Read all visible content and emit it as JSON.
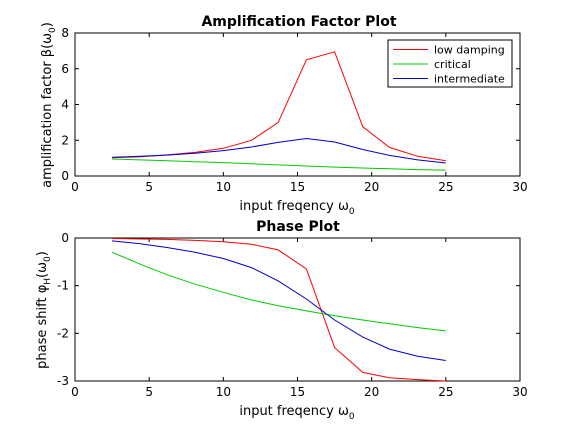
{
  "chart_data": [
    {
      "type": "line",
      "title": "Amplification Factor Plot",
      "xlabel": "input freqency ω",
      "xlabel_sub": "0",
      "ylabel": "amplification factor β(ω",
      "ylabel_sub": "0",
      "ylabel_end": ")",
      "xlim": [
        0,
        30
      ],
      "ylim": [
        0,
        8
      ],
      "xticks": [
        0,
        5,
        10,
        15,
        20,
        25,
        30
      ],
      "yticks": [
        0,
        2,
        4,
        6,
        8
      ],
      "grid": false,
      "legend_position": "top-right",
      "series": [
        {
          "name": "low damping",
          "color": "#ff0000",
          "x": [
            2.5,
            4.4,
            6.2,
            8.1,
            10.0,
            11.9,
            13.7,
            15.6,
            17.5,
            19.4,
            21.2,
            23.1,
            25.0
          ],
          "y": [
            1.02,
            1.08,
            1.18,
            1.32,
            1.55,
            2.0,
            3.0,
            6.5,
            6.95,
            2.75,
            1.6,
            1.1,
            0.85
          ]
        },
        {
          "name": "critical",
          "color": "#00cc00",
          "x": [
            2.5,
            4.4,
            6.2,
            8.1,
            10.0,
            11.9,
            13.7,
            15.6,
            17.5,
            19.4,
            21.2,
            23.1,
            25.0
          ],
          "y": [
            0.95,
            0.9,
            0.85,
            0.8,
            0.75,
            0.68,
            0.62,
            0.56,
            0.5,
            0.45,
            0.4,
            0.36,
            0.33
          ]
        },
        {
          "name": "intermediate",
          "color": "#0000cc",
          "x": [
            2.5,
            4.4,
            6.2,
            8.1,
            10.0,
            11.9,
            13.7,
            15.6,
            17.5,
            19.4,
            21.2,
            23.1,
            25.0
          ],
          "y": [
            1.05,
            1.1,
            1.17,
            1.27,
            1.42,
            1.62,
            1.88,
            2.1,
            1.9,
            1.48,
            1.15,
            0.9,
            0.73
          ]
        }
      ]
    },
    {
      "type": "line",
      "title": "Phase Plot",
      "xlabel": "input freqency ω",
      "xlabel_sub": "0",
      "ylabel": "phase shift φ",
      "ylabel_sub": "H",
      "ylabel_end": "(ω",
      "ylabel_sub2": "0",
      "ylabel_end2": ")",
      "xlim": [
        0,
        30
      ],
      "ylim": [
        -3,
        0
      ],
      "xticks": [
        0,
        5,
        10,
        15,
        20,
        25,
        30
      ],
      "yticks": [
        -3,
        -2,
        -1,
        0
      ],
      "grid": false,
      "series": [
        {
          "color": "#ff0000",
          "x": [
            2.5,
            4.4,
            6.2,
            8.1,
            10.0,
            11.9,
            13.7,
            15.6,
            17.5,
            19.4,
            21.2,
            23.1,
            25.0
          ],
          "y": [
            -0.01,
            -0.02,
            -0.03,
            -0.05,
            -0.08,
            -0.13,
            -0.25,
            -0.65,
            -2.3,
            -2.82,
            -2.93,
            -2.97,
            -3.0
          ]
        },
        {
          "color": "#00cc00",
          "x": [
            2.5,
            4.4,
            6.2,
            8.1,
            10.0,
            11.9,
            13.7,
            15.6,
            17.5,
            19.4,
            21.2,
            23.1,
            25.0
          ],
          "y": [
            -0.3,
            -0.55,
            -0.77,
            -0.97,
            -1.14,
            -1.3,
            -1.42,
            -1.53,
            -1.63,
            -1.72,
            -1.8,
            -1.88,
            -1.95
          ]
        },
        {
          "color": "#0000cc",
          "x": [
            2.5,
            4.4,
            6.2,
            8.1,
            10.0,
            11.9,
            13.7,
            15.6,
            17.5,
            19.4,
            21.2,
            23.1,
            25.0
          ],
          "y": [
            -0.06,
            -0.12,
            -0.2,
            -0.3,
            -0.43,
            -0.62,
            -0.9,
            -1.28,
            -1.72,
            -2.08,
            -2.33,
            -2.48,
            -2.57
          ]
        }
      ]
    }
  ]
}
